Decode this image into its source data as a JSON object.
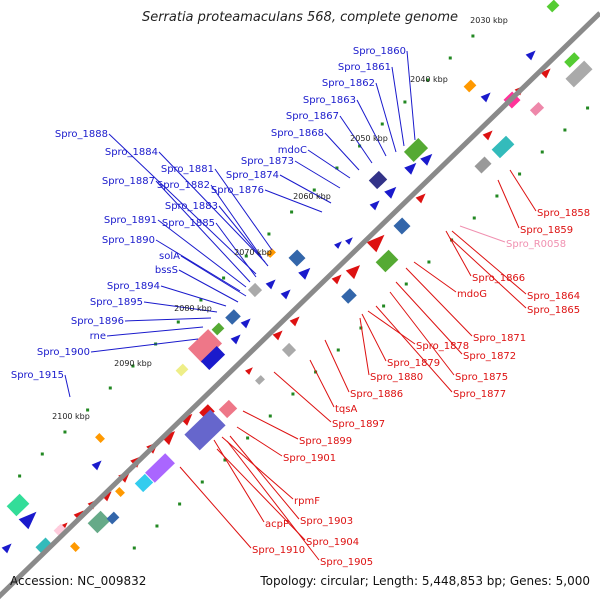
{
  "title": "Serratia proteamaculans 568, complete genome",
  "footer": {
    "accession": "Accession: NC_009832",
    "summary": "Topology: circular; Length: 5,448,853 bp; Genes: 5,000"
  },
  "colors": {
    "backbone": "#8a8a8a",
    "forward_label": "#1a1acc",
    "reverse_label": "#dd1111",
    "rna_label": "#f090b0",
    "tick_dot": "#228822",
    "kbp_text": "#222222"
  },
  "kbp_ticks": [
    {
      "label": "2030 kbp"
    },
    {
      "label": "2040 kbp"
    },
    {
      "label": "2050 kbp"
    },
    {
      "label": "2060 kbp"
    },
    {
      "label": "2070 kbp"
    },
    {
      "label": "2080 kbp"
    },
    {
      "label": "2090 kbp"
    },
    {
      "label": "2100 kbp"
    }
  ],
  "forward_genes": [
    {
      "label": "Spro_1860"
    },
    {
      "label": "Spro_1861"
    },
    {
      "label": "Spro_1862"
    },
    {
      "label": "Spro_1863"
    },
    {
      "label": "Spro_1867"
    },
    {
      "label": "Spro_1868"
    },
    {
      "label": "mdoC"
    },
    {
      "label": "Spro_1873"
    },
    {
      "label": "Spro_1874"
    },
    {
      "label": "Spro_1876"
    },
    {
      "label": "Spro_1888"
    },
    {
      "label": "Spro_1884"
    },
    {
      "label": "Spro_1881"
    },
    {
      "label": "Spro_1887"
    },
    {
      "label": "Spro_1882"
    },
    {
      "label": "Spro_1883"
    },
    {
      "label": "Spro_1891"
    },
    {
      "label": "Spro_1885"
    },
    {
      "label": "Spro_1890"
    },
    {
      "label": "solA"
    },
    {
      "label": "bssS"
    },
    {
      "label": "Spro_1894"
    },
    {
      "label": "Spro_1895"
    },
    {
      "label": "Spro_1896"
    },
    {
      "label": "rne"
    },
    {
      "label": "Spro_1900"
    },
    {
      "label": "Spro_1915"
    }
  ],
  "reverse_genes": [
    {
      "label": "Spro_1858"
    },
    {
      "label": "Spro_1859"
    },
    {
      "label": "Spro_R0058"
    },
    {
      "label": "Spro_1866"
    },
    {
      "label": "Spro_1864"
    },
    {
      "label": "mdoG"
    },
    {
      "label": "Spro_1865"
    },
    {
      "label": "Spro_1871"
    },
    {
      "label": "Spro_1878"
    },
    {
      "label": "Spro_1872"
    },
    {
      "label": "Spro_1879"
    },
    {
      "label": "Spro_1875"
    },
    {
      "label": "Spro_1880"
    },
    {
      "label": "Spro_1877"
    },
    {
      "label": "Spro_1886"
    },
    {
      "label": "tqsA"
    },
    {
      "label": "Spro_1897"
    },
    {
      "label": "Spro_1899"
    },
    {
      "label": "Spro_1901"
    },
    {
      "label": "rpmF"
    },
    {
      "label": "Spro_1903"
    },
    {
      "label": "acpP"
    },
    {
      "label": "Spro_1904"
    },
    {
      "label": "Spro_1910"
    },
    {
      "label": "Spro_1905"
    }
  ]
}
